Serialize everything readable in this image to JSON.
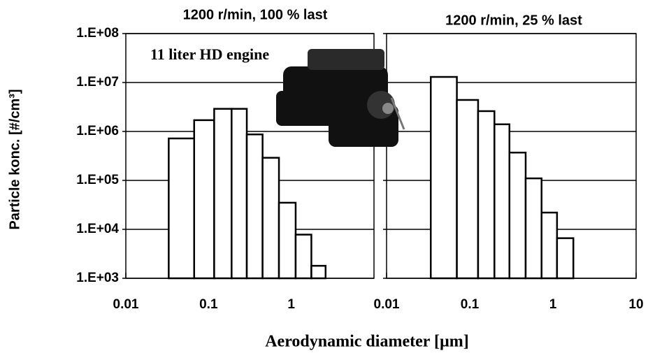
{
  "chart_data": [
    {
      "type": "histogram",
      "title": "1200 r/min, 100 % last",
      "annotation": "11 liter HD engine",
      "ylabel": "Particle konc. [#/cm³]",
      "xlabel": "Aerodynamic diameter [µm]",
      "xscale": "log",
      "yscale": "log",
      "grid": true,
      "color": "#ffffff",
      "bins": [
        0.033,
        0.067,
        0.117,
        0.19,
        0.29,
        0.45,
        0.71,
        1.13,
        1.75,
        2.6
      ],
      "values": [
        720000,
        1700000,
        2900000,
        2900000,
        870000,
        290000,
        35000,
        7800,
        1800
      ],
      "xlim": [
        0.01,
        10
      ],
      "xticks": [
        0.01,
        0.1,
        1
      ],
      "ylim": [
        1000,
        100000000
      ],
      "yticks": [
        {
          "value": 1000,
          "label": "1.E+03"
        },
        {
          "value": 10000,
          "label": "1.E+04"
        },
        {
          "value": 100000,
          "label": "1.E+05"
        },
        {
          "value": 1000000,
          "label": "1.E+06"
        },
        {
          "value": 10000000,
          "label": "1.E+07"
        },
        {
          "value": 100000000,
          "label": "1.E+08"
        }
      ]
    },
    {
      "type": "histogram",
      "title": "1200 r/min, 25 % last",
      "xscale": "log",
      "yscale": "log",
      "grid": true,
      "color": "#ffffff",
      "bins": [
        0.034,
        0.07,
        0.126,
        0.198,
        0.3,
        0.47,
        0.73,
        1.12,
        1.76
      ],
      "values": [
        13000000,
        4400000,
        2600000,
        1400000,
        370000,
        110000,
        22000,
        6600
      ],
      "xlim": [
        0.01,
        10
      ],
      "xticks": [
        0.01,
        0.1,
        1,
        10
      ],
      "ylim": [
        1000,
        100000000
      ]
    }
  ]
}
